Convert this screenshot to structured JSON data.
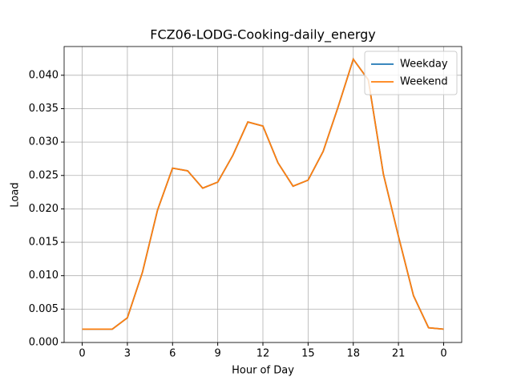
{
  "chart_data": {
    "type": "line",
    "title": "FCZ06-LODG-Cooking-daily_energy",
    "xlabel": "Hour of Day",
    "ylabel": "Load",
    "x": [
      0,
      1,
      2,
      3,
      4,
      5,
      6,
      7,
      8,
      9,
      10,
      11,
      12,
      13,
      14,
      15,
      16,
      17,
      18,
      19,
      20,
      21,
      22,
      23,
      24
    ],
    "series": [
      {
        "name": "Weekday",
        "color": "#1f77b4",
        "values": [
          0.002,
          0.002,
          0.002,
          0.0037,
          0.0105,
          0.0198,
          0.0261,
          0.0257,
          0.0231,
          0.024,
          0.028,
          0.033,
          0.0324,
          0.0269,
          0.0234,
          0.0243,
          0.0286,
          0.0353,
          0.0424,
          0.0393,
          0.0252,
          0.0159,
          0.007,
          0.0022,
          0.002
        ]
      },
      {
        "name": "Weekend",
        "color": "#ff7f0e",
        "values": [
          0.002,
          0.002,
          0.002,
          0.0037,
          0.0105,
          0.0198,
          0.0261,
          0.0257,
          0.0231,
          0.024,
          0.028,
          0.033,
          0.0324,
          0.0269,
          0.0234,
          0.0243,
          0.0286,
          0.0353,
          0.0424,
          0.0393,
          0.0252,
          0.0159,
          0.007,
          0.0022,
          0.002
        ]
      }
    ],
    "xlim": [
      -1.2,
      25.2
    ],
    "ylim": [
      0,
      0.0443
    ],
    "xticks": [
      0,
      3,
      6,
      9,
      12,
      15,
      18,
      21,
      {
        "value": 24,
        "label": "0"
      }
    ],
    "yticks": [
      {
        "value": 0,
        "label": "0.000"
      },
      {
        "value": 0.005,
        "label": "0.005"
      },
      {
        "value": 0.01,
        "label": "0.010"
      },
      {
        "value": 0.015,
        "label": "0.015"
      },
      {
        "value": 0.02,
        "label": "0.020"
      },
      {
        "value": 0.025,
        "label": "0.025"
      },
      {
        "value": 0.03,
        "label": "0.030"
      },
      {
        "value": 0.035,
        "label": "0.035"
      },
      {
        "value": 0.04,
        "label": "0.040"
      }
    ],
    "grid": true,
    "legend": "upper right"
  }
}
